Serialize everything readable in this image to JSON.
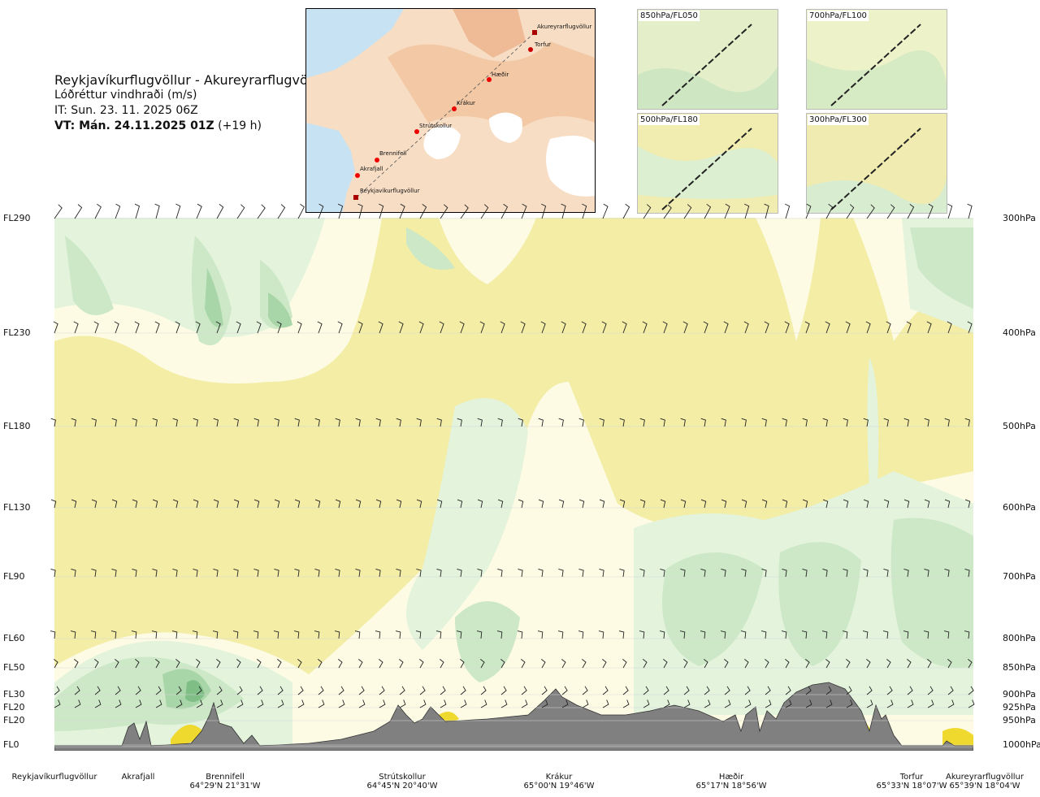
{
  "header": {
    "route": "Reykjavíkurflugvöllur - Akureyrarflugvöllur",
    "variable": "Lóðréttur vindhraði (m/s)",
    "it": "IT: Sun. 23. 11. 2025 06Z",
    "vt_bold": "VT: Mán. 24.11.2025 01Z",
    "vt_lead": "(+19 h)"
  },
  "map": {
    "places": [
      "Akureyrarflugvöllur",
      "Torfur",
      "Hæðir",
      "Krákur",
      "Strútskollur",
      "Brennifell",
      "Akrafjall",
      "Reykjavíkurflugvöllur"
    ]
  },
  "insets": [
    "850hPa/FL050",
    "700hPa/FL100",
    "500hPa/FL180",
    "300hPa/FL300"
  ],
  "chart_data": {
    "type": "heatmap",
    "title": "Lóðréttur vindhraði (m/s)",
    "left_axis": [
      "FL290",
      "FL230",
      "FL180",
      "FL130",
      "FL90",
      "FL60",
      "FL50",
      "FL30",
      "FL20",
      "FL20",
      "FL0"
    ],
    "right_axis": [
      "300hPa",
      "400hPa",
      "500hPa",
      "600hPa",
      "700hPa",
      "800hPa",
      "850hPa",
      "900hPa",
      "925hPa",
      "950hPa",
      "1000hPa"
    ],
    "pressure_levels_hpa": [
      300,
      400,
      500,
      600,
      700,
      800,
      850,
      900,
      925,
      950,
      1000
    ],
    "waypoints": [
      {
        "name": "Reykjavíkurflugvöllur",
        "coord": ""
      },
      {
        "name": "Akrafjall",
        "coord": ""
      },
      {
        "name": "Brennifell",
        "coord": "64°29'N 21°31'W"
      },
      {
        "name": "Strútskollur",
        "coord": "64°45'N 20°40'W"
      },
      {
        "name": "Krákur",
        "coord": "65°00'N 19°46'W"
      },
      {
        "name": "Hæðir",
        "coord": "65°17'N 18°56'W"
      },
      {
        "name": "Torfur",
        "coord": "65°33'N 18°07'W"
      },
      {
        "name": "Akureyrarflugvöllur",
        "coord": "65°39'N 18°04'W"
      }
    ],
    "colors": {
      "downdraft_weak": "#f3eda5",
      "neutral": "#fdfbe4",
      "updraft_weak": "#e3f3dc",
      "updraft": "#cce8c6",
      "updraft_strong": "#a9d6a9",
      "updraft_core": "#7fbf86",
      "terrain": "#808080",
      "downdraft_strong": "#f0d92e"
    }
  }
}
